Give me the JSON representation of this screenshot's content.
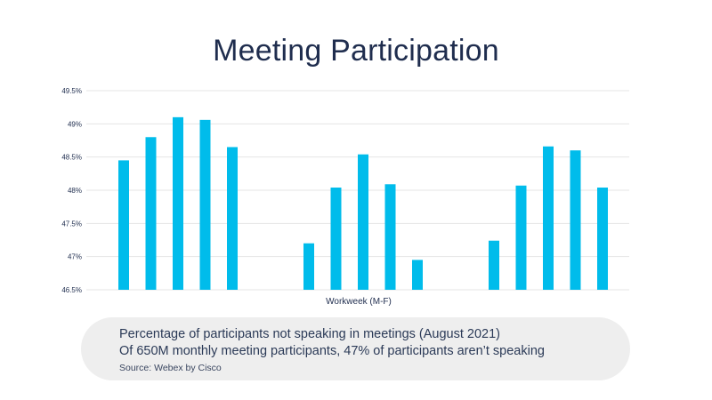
{
  "colors": {
    "bar": "#00bceb",
    "grid": "#e4e4e4",
    "text": "#1f2d4e"
  },
  "chart_data": {
    "type": "bar",
    "title": "Meeting Participation",
    "xlabel": "Workweek (M-F)",
    "ylabel": "",
    "ylim": [
      46.5,
      49.5
    ],
    "yticks": [
      46.5,
      47,
      47.5,
      48,
      48.5,
      49,
      49.5
    ],
    "ytick_labels": [
      "46.5%",
      "47%",
      "47.5%",
      "48%",
      "48.5%",
      "49%",
      "49.5%"
    ],
    "grid": true,
    "groups": [
      {
        "values": [
          48.45,
          48.8,
          49.1,
          49.06,
          48.65
        ]
      },
      {
        "values": [
          47.2,
          48.04,
          48.54,
          48.09,
          46.95
        ]
      },
      {
        "values": [
          47.24,
          48.07,
          48.66,
          48.6,
          48.04
        ]
      }
    ]
  },
  "note": {
    "line1": "Percentage of participants not speaking in meetings (August 2021)",
    "line2": "Of 650M monthly meeting participants, 47% of participants aren’t speaking",
    "source": "Source: Webex by Cisco"
  }
}
